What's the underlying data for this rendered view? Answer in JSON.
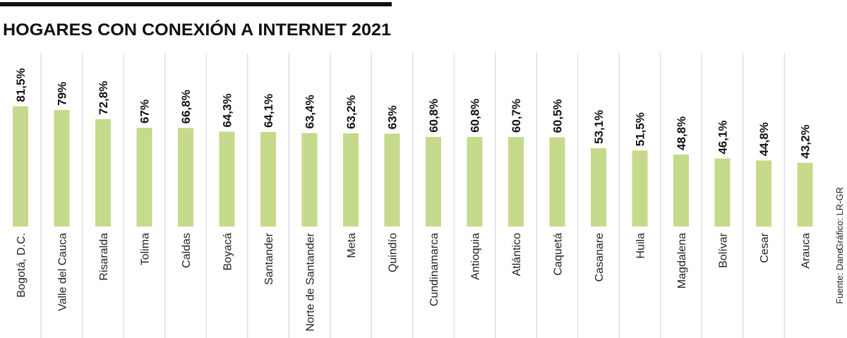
{
  "chart_data": {
    "type": "bar",
    "title": "HOGARES CON CONEXIÓN A INTERNET 2021",
    "categories": [
      "Bogotá, D.C.",
      "Valle del Cauca",
      "Risaralda",
      "Tolima",
      "Caldas",
      "Boyacá",
      "Santander",
      "Norte de Santander",
      "Meta",
      "Quindío",
      "Cundinamarca",
      "Antioquia",
      "Atlántico",
      "Caquetá",
      "Casanare",
      "Huila",
      "Magdalena",
      "Bolívar",
      "Cesar",
      "Arauca"
    ],
    "values": [
      81.5,
      79,
      72.8,
      67,
      66.8,
      64.3,
      64.1,
      63.4,
      63.2,
      63,
      60.8,
      60.8,
      60.7,
      60.5,
      53.1,
      51.5,
      48.8,
      46.1,
      44.8,
      43.2
    ],
    "value_labels": [
      "81,5%",
      "79%",
      "72,8%",
      "67%",
      "66,8%",
      "64,3%",
      "64,1%",
      "63,4%",
      "63,2%",
      "63%",
      "60,8%",
      "60,8%",
      "60,7%",
      "60,5%",
      "53,1%",
      "51,5%",
      "48,8%",
      "46,1%",
      "44,8%",
      "43,2%"
    ],
    "color": "#c5da8b",
    "source": "Fuente: Dane",
    "credit": "Gráfico: LR-GR"
  }
}
